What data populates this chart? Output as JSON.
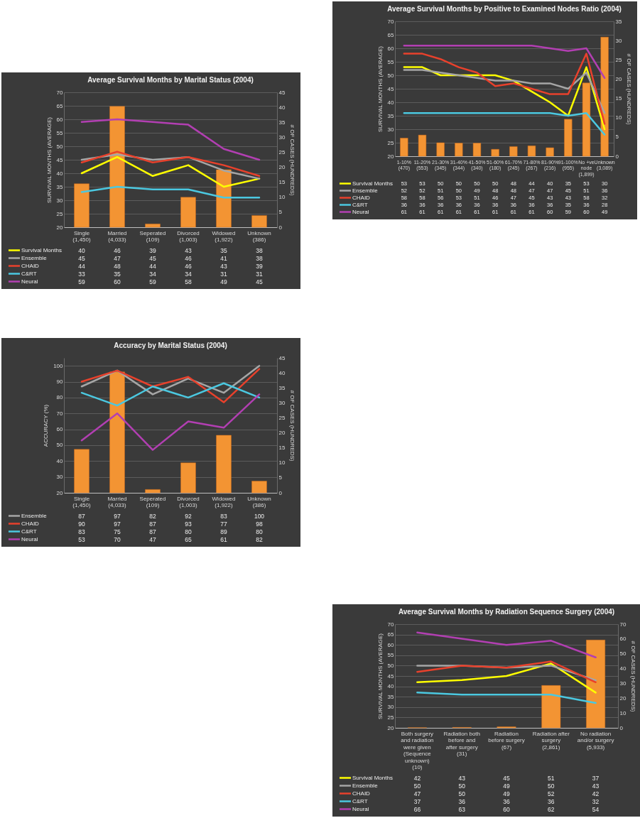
{
  "chart_data": [
    {
      "type": "line",
      "title": "Average Survival Months by Marital Status (2004)",
      "ylabel": "SURVIVAL MONTHS (AVERAGE)",
      "y2label": "# OF CASES (HUNDREDS)",
      "categories": [
        "Single (1,450)",
        "Married (4,033)",
        "Seperated (109)",
        "Divorced (1,003)",
        "Widowed (1,922)",
        "Unknown (386)"
      ],
      "ylim": [
        20,
        70
      ],
      "yticks": [
        20,
        25,
        30,
        35,
        40,
        45,
        50,
        55,
        60,
        65,
        70
      ],
      "y2lim": [
        0,
        45
      ],
      "y2ticks": [
        0,
        5,
        10,
        15,
        20,
        25,
        30,
        35,
        40,
        45
      ],
      "grid": "y",
      "legend": "bottom left",
      "series": [
        {
          "type": "bar",
          "axis": "y2",
          "color": "#f39433",
          "values": [
            14.5,
            40.3,
            1.1,
            10.0,
            19.2,
            3.9
          ]
        },
        {
          "name": "Survival Months",
          "color": "#ffff00",
          "values": [
            40,
            46,
            39,
            43,
            35,
            38
          ],
          "value_labels": [
            "40",
            "46",
            "39",
            "43",
            "35",
            "38"
          ]
        },
        {
          "name": "Ensemble",
          "color": "#a6a6a6",
          "values": [
            45,
            47,
            45,
            46,
            41,
            38
          ],
          "value_labels": [
            "45",
            "47",
            "45",
            "46",
            "41",
            "38"
          ]
        },
        {
          "name": "CHAID",
          "color": "#e8412c",
          "values": [
            44,
            48,
            44,
            46,
            43,
            39
          ],
          "value_labels": [
            "44",
            "48",
            "44",
            "46",
            "43",
            "39"
          ]
        },
        {
          "name": "C&RT",
          "color": "#4bc8e0",
          "values": [
            33,
            35,
            34,
            34,
            31,
            31
          ],
          "value_labels": [
            "33",
            "35",
            "34",
            "34",
            "31",
            "31"
          ]
        },
        {
          "name": "Neural",
          "color": "#b23fb2",
          "values": [
            59,
            60,
            59,
            58,
            49,
            45
          ],
          "value_labels": [
            "59",
            "60",
            "59",
            "58",
            "49",
            "45"
          ]
        }
      ]
    },
    {
      "type": "line",
      "title": "Accuracy by Marital Status (2004)",
      "ylabel": "ACCURACY (%)",
      "y2label": "# OF CASES (HUNDREDS)",
      "categories": [
        "Single (1,450)",
        "Married (4,033)",
        "Seperated (109)",
        "Divorced (1,003)",
        "Widowed (1,922)",
        "Unknown (386)"
      ],
      "ylim": [
        20,
        105
      ],
      "yticks": [
        20,
        30,
        40,
        50,
        60,
        70,
        80,
        90,
        100
      ],
      "y2lim": [
        0,
        45
      ],
      "y2ticks": [
        0,
        5,
        10,
        15,
        20,
        25,
        30,
        35,
        40,
        45
      ],
      "grid": "y",
      "legend": "bottom left",
      "series": [
        {
          "type": "bar",
          "axis": "y2",
          "color": "#f39433",
          "values": [
            14.5,
            40.3,
            1.1,
            10.0,
            19.2,
            3.9
          ]
        },
        {
          "name": "Ensemble",
          "color": "#a6a6a6",
          "values": [
            87,
            97,
            82,
            92,
            83,
            100
          ],
          "value_labels": [
            "87",
            "97",
            "82",
            "92",
            "83",
            "100"
          ]
        },
        {
          "name": "CHAID",
          "color": "#e8412c",
          "values": [
            90,
            97,
            87,
            93,
            77,
            98
          ],
          "value_labels": [
            "90",
            "97",
            "87",
            "93",
            "77",
            "98"
          ]
        },
        {
          "name": "C&RT",
          "color": "#4bc8e0",
          "values": [
            83,
            75,
            87,
            80,
            89,
            80
          ],
          "value_labels": [
            "83",
            "75",
            "87",
            "80",
            "89",
            "80"
          ]
        },
        {
          "name": "Neural",
          "color": "#b23fb2",
          "values": [
            53,
            70,
            47,
            65,
            61,
            82
          ],
          "value_labels": [
            "53",
            "70",
            "47",
            "65",
            "61",
            "82"
          ]
        }
      ]
    },
    {
      "type": "line",
      "title": "Average Survival Months by Positive to Examined Nodes Ratio (2004)",
      "ylabel": "SURVIVAL MONTHS (AVERAGE)",
      "y2label": "# OF CASES (HUNDREDS)",
      "categories": [
        "1-10% (470)",
        "11-20% (553)",
        "21-30% (345)",
        "31-40% (344)",
        "41-50% (340)",
        "51-60% (180)",
        "61-70% (245)",
        "71-80% (267)",
        "81-90% (216)",
        "91-100% (955)",
        "No +ve node (1,899)",
        "Unknown (3,089)"
      ],
      "ylim": [
        20,
        70
      ],
      "yticks": [
        20,
        25,
        30,
        35,
        40,
        45,
        50,
        55,
        60,
        65,
        70
      ],
      "y2lim": [
        0,
        35
      ],
      "y2ticks": [
        0,
        5,
        10,
        15,
        20,
        25,
        30,
        35
      ],
      "grid": "y",
      "legend": "bottom left",
      "series": [
        {
          "type": "bar",
          "axis": "y2",
          "color": "#f39433",
          "values": [
            4.7,
            5.5,
            3.5,
            3.4,
            3.4,
            1.8,
            2.5,
            2.7,
            2.2,
            9.6,
            19.0,
            30.9
          ]
        },
        {
          "name": "Survival Months",
          "color": "#ffff00",
          "values": [
            53,
            53,
            50,
            50,
            50,
            50,
            48,
            44,
            40,
            35,
            53,
            30
          ],
          "value_labels": [
            "53",
            "53",
            "50",
            "50",
            "50",
            "50",
            "48",
            "44",
            "40",
            "35",
            "53",
            "30"
          ]
        },
        {
          "name": "Ensemble",
          "color": "#a6a6a6",
          "values": [
            52,
            52,
            51,
            50,
            49,
            48,
            48,
            47,
            47,
            45,
            51,
            36
          ],
          "value_labels": [
            "52",
            "52",
            "51",
            "50",
            "49",
            "48",
            "48",
            "47",
            "47",
            "45",
            "51",
            "36"
          ]
        },
        {
          "name": "CHAID",
          "color": "#e8412c",
          "values": [
            58,
            58,
            56,
            53,
            51,
            46,
            47,
            45,
            43,
            43,
            58,
            32
          ],
          "value_labels": [
            "58",
            "58",
            "56",
            "53",
            "51",
            "46",
            "47",
            "45",
            "43",
            "43",
            "58",
            "32"
          ]
        },
        {
          "name": "C&RT",
          "color": "#4bc8e0",
          "values": [
            36,
            36,
            36,
            36,
            36,
            36,
            36,
            36,
            36,
            35,
            36,
            28
          ],
          "value_labels": [
            "36",
            "36",
            "36",
            "36",
            "36",
            "36",
            "36",
            "36",
            "36",
            "35",
            "36",
            "28"
          ]
        },
        {
          "name": "Neural",
          "color": "#b23fb2",
          "values": [
            61,
            61,
            61,
            61,
            61,
            61,
            61,
            61,
            60,
            59,
            60,
            49
          ],
          "value_labels": [
            "61",
            "61",
            "61",
            "61",
            "61",
            "61",
            "61",
            "61",
            "60",
            "59",
            "60",
            "49"
          ]
        }
      ]
    },
    {
      "type": "line",
      "title": "Average Survival Months by Radiation Sequence Surgery (2004)",
      "ylabel": "SURVIVAL MONTHS (AVERAGE)",
      "y2label": "# OF CASES (HUNDREDS)",
      "categories": [
        "Both surgery and radiation were given (Sequence unknown) (10)",
        "Radiation both before and after surgery (31)",
        "Radiation before surgery (67)",
        "Radiation after surgery (2,861)",
        "No radiation and/or surgery (5,933)"
      ],
      "ylim": [
        20,
        70
      ],
      "yticks": [
        20,
        25,
        30,
        35,
        40,
        45,
        50,
        55,
        60,
        65,
        70
      ],
      "y2lim": [
        0,
        70
      ],
      "y2ticks": [
        0,
        10,
        20,
        30,
        40,
        50,
        60,
        70
      ],
      "grid": "y",
      "legend": "bottom left",
      "series": [
        {
          "type": "bar",
          "axis": "y2",
          "color": "#f39433",
          "values": [
            0.1,
            0.3,
            0.7,
            28.6,
            59.3
          ]
        },
        {
          "name": "Survival Months",
          "color": "#ffff00",
          "values": [
            42,
            43,
            45,
            51,
            37
          ],
          "value_labels": [
            "42",
            "43",
            "45",
            "51",
            "37"
          ]
        },
        {
          "name": "Ensemble",
          "color": "#a6a6a6",
          "values": [
            50,
            50,
            49,
            50,
            43
          ],
          "value_labels": [
            "50",
            "50",
            "49",
            "50",
            "43"
          ]
        },
        {
          "name": "CHAID",
          "color": "#e8412c",
          "values": [
            47,
            50,
            49,
            52,
            42
          ],
          "value_labels": [
            "47",
            "50",
            "49",
            "52",
            "42"
          ]
        },
        {
          "name": "C&RT",
          "color": "#4bc8e0",
          "values": [
            37,
            36,
            36,
            36,
            32
          ],
          "value_labels": [
            "37",
            "36",
            "36",
            "36",
            "32"
          ]
        },
        {
          "name": "Neural",
          "color": "#b23fb2",
          "values": [
            66,
            63,
            60,
            62,
            54
          ],
          "value_labels": [
            "66",
            "63",
            "60",
            "62",
            "54"
          ]
        }
      ]
    }
  ]
}
